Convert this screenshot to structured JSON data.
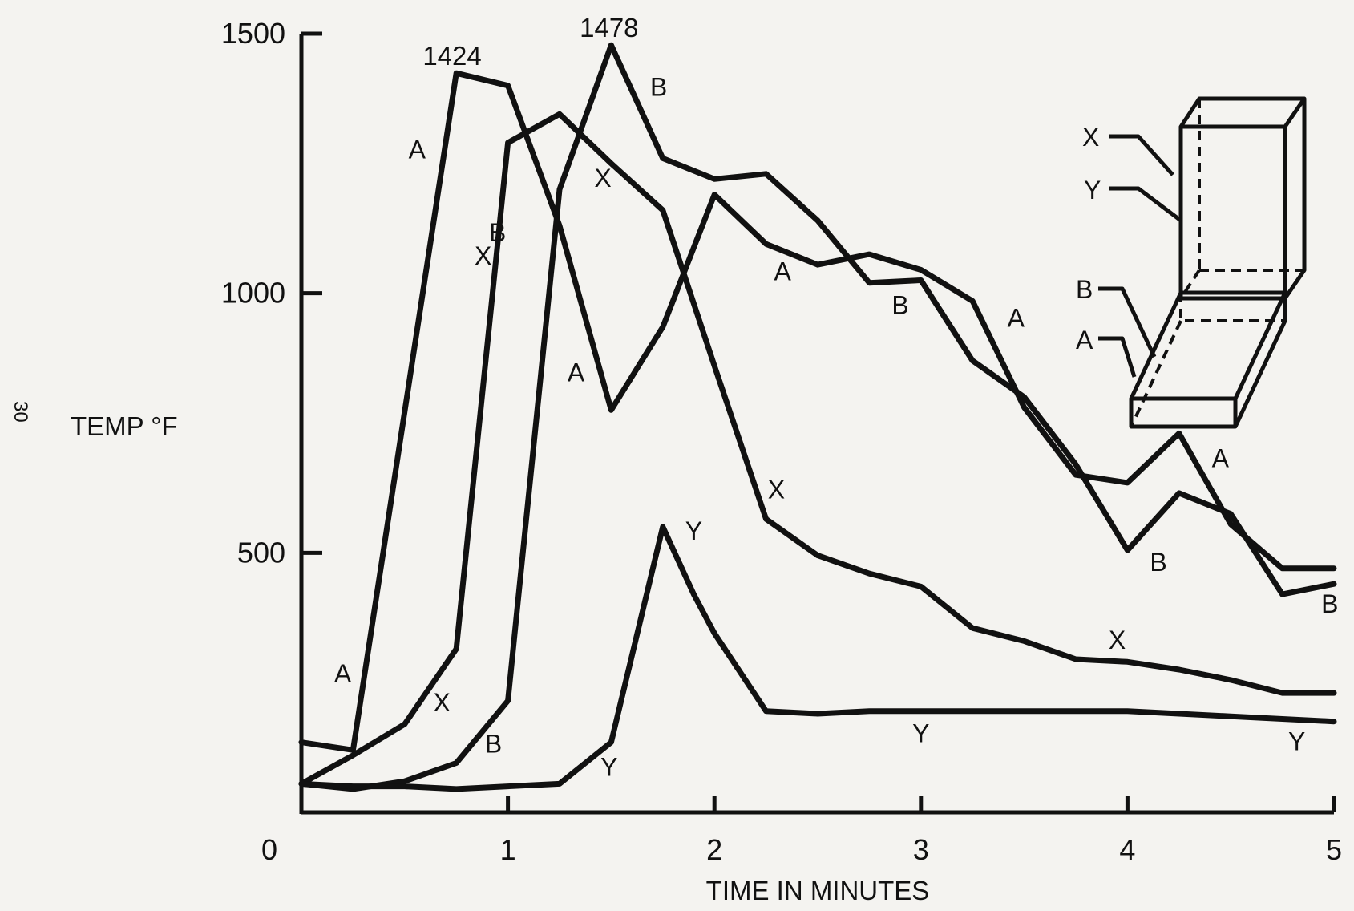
{
  "chart_data": {
    "type": "line",
    "title": "",
    "xlabel": "TIME IN MINUTES",
    "ylabel": "TEMP °F",
    "xlim": [
      0,
      5
    ],
    "ylim": [
      0,
      1500
    ],
    "x_ticks": [
      "0",
      "1",
      "2",
      "3",
      "4",
      "5"
    ],
    "y_ticks": [
      "500",
      "1000",
      "1500"
    ],
    "grid": false,
    "legend": "none",
    "series": [
      {
        "name": "A",
        "x": [
          0,
          0.25,
          0.75,
          1.0,
          1.25,
          1.5,
          1.75,
          2.0,
          2.25,
          2.5,
          2.75,
          3.0,
          3.25,
          3.5,
          3.75,
          4.0,
          4.25,
          4.5,
          4.75,
          5.0
        ],
        "y": [
          135,
          120,
          1424,
          1400,
          1130,
          775,
          935,
          1190,
          1095,
          1055,
          1075,
          1045,
          985,
          780,
          650,
          635,
          730,
          555,
          470,
          470
        ]
      },
      {
        "name": "X",
        "x": [
          0,
          0.25,
          0.5,
          0.75,
          1.0,
          1.25,
          1.5,
          1.75,
          2.0,
          2.25,
          2.5,
          2.75,
          3.0,
          3.25,
          3.5,
          3.75,
          4.0,
          4.25,
          4.5,
          4.75,
          5.0
        ],
        "y": [
          55,
          110,
          170,
          315,
          1290,
          1345,
          1250,
          1160,
          860,
          565,
          495,
          460,
          435,
          355,
          330,
          295,
          290,
          275,
          255,
          230,
          230
        ]
      },
      {
        "name": "B",
        "x": [
          0,
          0.25,
          0.5,
          0.75,
          1.0,
          1.25,
          1.5,
          1.75,
          2.0,
          2.25,
          2.5,
          2.75,
          3.0,
          3.25,
          3.5,
          3.75,
          4.0,
          4.25,
          4.5,
          4.75,
          5.0
        ],
        "y": [
          55,
          45,
          60,
          95,
          215,
          1200,
          1478,
          1260,
          1220,
          1230,
          1140,
          1020,
          1025,
          870,
          800,
          670,
          505,
          615,
          575,
          420,
          440
        ]
      },
      {
        "name": "Y",
        "x": [
          0,
          0.25,
          0.5,
          0.75,
          1.0,
          1.25,
          1.5,
          1.75,
          1.9,
          2.0,
          2.25,
          2.5,
          2.75,
          3.0,
          3.25,
          3.5,
          3.75,
          4.0,
          4.25,
          4.5,
          4.75,
          5.0
        ],
        "y": [
          55,
          50,
          50,
          45,
          50,
          55,
          135,
          550,
          420,
          345,
          195,
          190,
          195,
          195,
          195,
          195,
          195,
          195,
          190,
          185,
          180,
          175
        ]
      }
    ],
    "series_labels": [
      {
        "text": "A",
        "x": 0.2,
        "y": 250
      },
      {
        "text": "A",
        "x": 0.56,
        "y": 1260
      },
      {
        "text": "A",
        "x": 1.33,
        "y": 830
      },
      {
        "text": "A",
        "x": 2.33,
        "y": 1025
      },
      {
        "text": "A",
        "x": 3.46,
        "y": 935
      },
      {
        "text": "A",
        "x": 4.45,
        "y": 665
      },
      {
        "text": "X",
        "x": 0.68,
        "y": 195
      },
      {
        "text": "X",
        "x": 0.88,
        "y": 1055
      },
      {
        "text": "X",
        "x": 1.46,
        "y": 1205
      },
      {
        "text": "X",
        "x": 2.3,
        "y": 605
      },
      {
        "text": "X",
        "x": 3.95,
        "y": 315
      },
      {
        "text": "B",
        "x": 0.95,
        "y": 1100
      },
      {
        "text": "B",
        "x": 0.93,
        "y": 115
      },
      {
        "text": "B",
        "x": 1.73,
        "y": 1380
      },
      {
        "text": "B",
        "x": 2.9,
        "y": 960
      },
      {
        "text": "B",
        "x": 4.15,
        "y": 465
      },
      {
        "text": "B",
        "x": 4.98,
        "y": 385
      },
      {
        "text": "Y",
        "x": 1.49,
        "y": 70
      },
      {
        "text": "Y",
        "x": 1.9,
        "y": 525
      },
      {
        "text": "Y",
        "x": 3.0,
        "y": 135
      },
      {
        "text": "Y",
        "x": 4.82,
        "y": 120
      }
    ],
    "annotations": [
      {
        "text": "1424",
        "x": 0.73,
        "y": 1440
      },
      {
        "text": "1478",
        "x": 1.49,
        "y": 1494
      }
    ]
  },
  "inset": {
    "labels": [
      "X",
      "Y",
      "B",
      "A"
    ]
  },
  "page_number": "30"
}
